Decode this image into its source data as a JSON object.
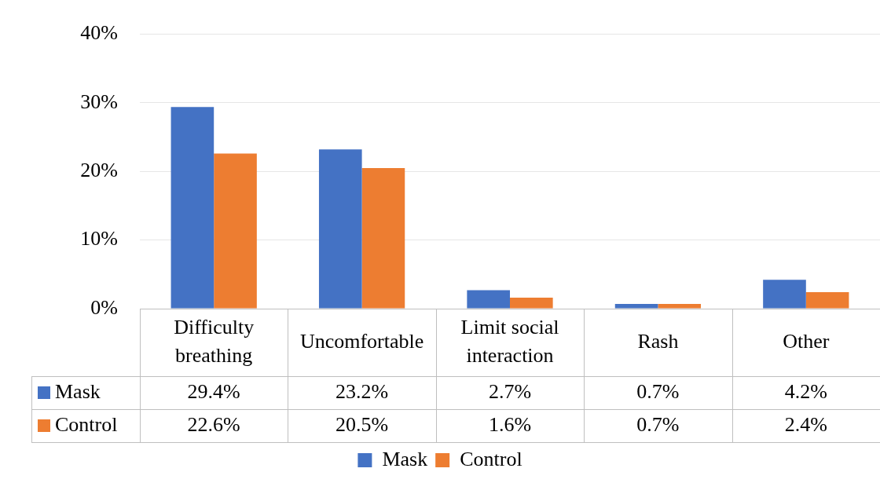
{
  "chart_data": {
    "type": "bar",
    "categories": [
      "Difficulty breathing",
      "Uncomfortable",
      "Limit social interaction",
      "Rash",
      "Other"
    ],
    "series": [
      {
        "name": "Mask",
        "color": "#4472c4",
        "values": [
          29.4,
          23.2,
          2.7,
          0.7,
          4.2
        ],
        "value_labels": [
          "29.4%",
          "23.2%",
          "2.7%",
          "0.7%",
          "4.2%"
        ]
      },
      {
        "name": "Control",
        "color": "#ed7d31",
        "values": [
          22.6,
          20.5,
          1.6,
          0.7,
          2.4
        ],
        "value_labels": [
          "22.6%",
          "20.5%",
          "1.6%",
          "0.7%",
          "2.4%"
        ]
      }
    ],
    "ylim": [
      0,
      40
    ],
    "yticks": [
      {
        "value": 0,
        "label": "0%"
      },
      {
        "value": 10,
        "label": "10%"
      },
      {
        "value": 20,
        "label": "20%"
      },
      {
        "value": 30,
        "label": "30%"
      },
      {
        "value": 40,
        "label": "40%"
      }
    ],
    "grid": "y",
    "legend": "bottom"
  }
}
